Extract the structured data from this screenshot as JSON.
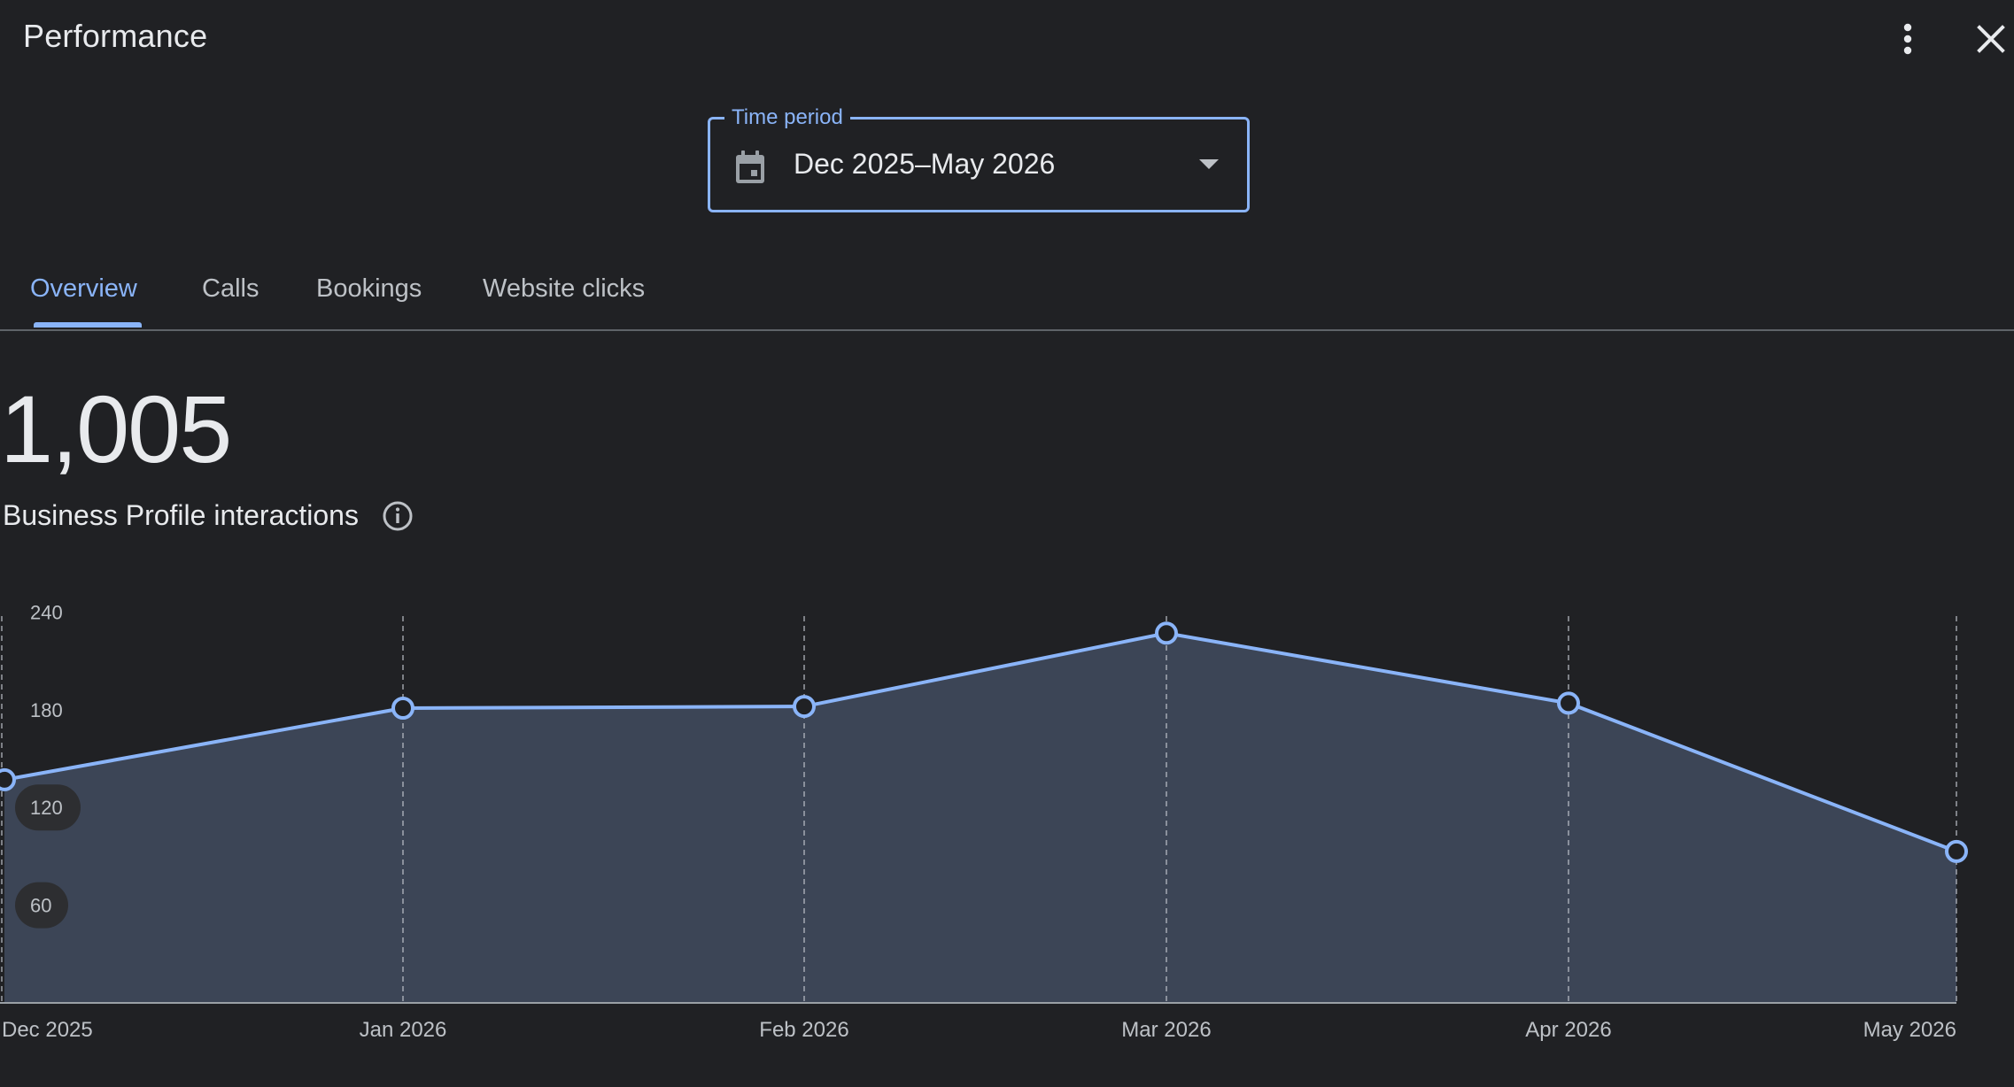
{
  "header": {
    "title": "Performance",
    "more_icon": "more-vert-icon",
    "close_icon": "close-icon"
  },
  "time_period": {
    "label": "Time period",
    "value": "Dec 2025–May 2026",
    "icon": "calendar-icon"
  },
  "tabs": [
    {
      "label": "Overview",
      "active": true
    },
    {
      "label": "Calls",
      "active": false
    },
    {
      "label": "Bookings",
      "active": false
    },
    {
      "label": "Website clicks",
      "active": false
    }
  ],
  "metric": {
    "value": "1,005",
    "label": "Business Profile interactions",
    "info_icon": "info-icon"
  },
  "colors": {
    "accent": "#8ab4f8",
    "area_fill": "#3c4556",
    "background": "#202124"
  },
  "chart_data": {
    "type": "area",
    "title": "",
    "xlabel": "",
    "ylabel": "",
    "categories": [
      "Dec 2025",
      "Jan 2026",
      "Feb 2026",
      "Mar 2026",
      "Apr 2026",
      "May 2026"
    ],
    "series": [
      {
        "values": [
          137,
          181,
          182,
          227,
          184,
          93
        ]
      }
    ],
    "y_ticks": [
      60,
      120,
      180,
      240
    ],
    "ylim": [
      0,
      240
    ],
    "grid": "vertical-dashed",
    "legend": "none"
  }
}
